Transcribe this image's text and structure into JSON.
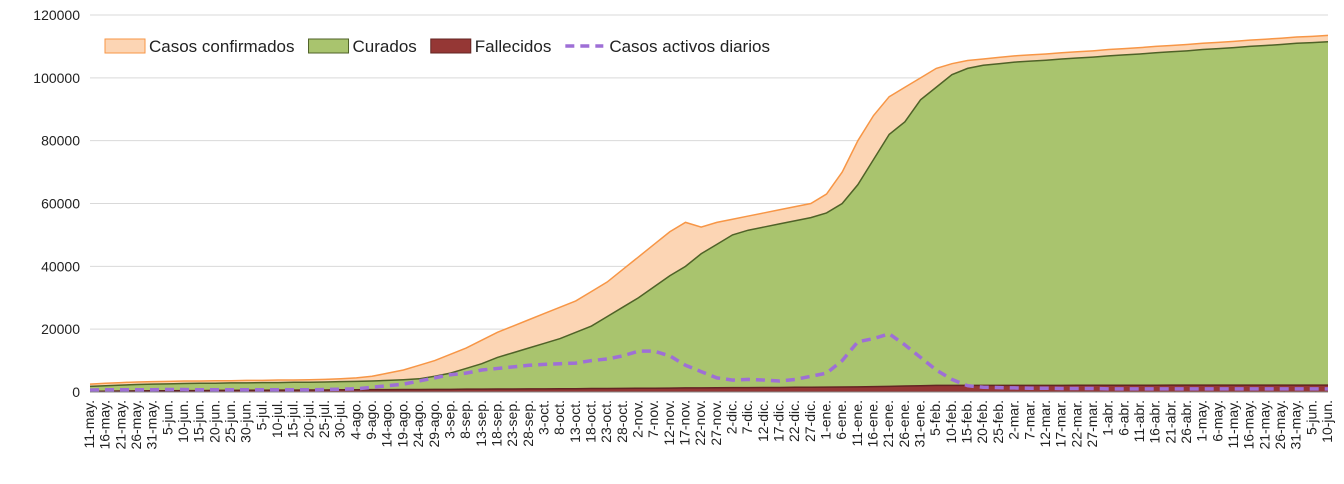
{
  "chart_data": {
    "type": "area",
    "categories": [
      "11-may.",
      "16-may.",
      "21-may.",
      "26-may.",
      "31-may.",
      "5-jun.",
      "10-jun.",
      "15-jun.",
      "20-jun.",
      "25-jun.",
      "30-jun.",
      "5-jul.",
      "10-jul.",
      "15-jul.",
      "20-jul.",
      "25-jul.",
      "30-jul.",
      "4-ago.",
      "9-ago.",
      "14-ago.",
      "19-ago.",
      "24-ago.",
      "29-ago.",
      "3-sep.",
      "8-sep.",
      "13-sep.",
      "18-sep.",
      "23-sep.",
      "28-sep.",
      "3-oct.",
      "8-oct.",
      "13-oct.",
      "18-oct.",
      "23-oct.",
      "28-oct.",
      "2-nov.",
      "7-nov.",
      "12-nov.",
      "17-nov.",
      "22-nov.",
      "27-nov.",
      "2-dic.",
      "7-dic.",
      "12-dic.",
      "17-dic.",
      "22-dic.",
      "27-dic.",
      "1-ene.",
      "6-ene.",
      "11-ene.",
      "16-ene.",
      "21-ene.",
      "26-ene.",
      "31-ene.",
      "5-feb.",
      "10-feb.",
      "15-feb.",
      "20-feb.",
      "25-feb.",
      "2-mar.",
      "7-mar.",
      "12-mar.",
      "17-mar.",
      "22-mar.",
      "27-mar.",
      "1-abr.",
      "6-abr.",
      "11-abr.",
      "16-abr.",
      "21-abr.",
      "26-abr.",
      "1-may.",
      "6-may.",
      "11-may.",
      "16-may.",
      "21-may.",
      "26-may.",
      "31-may.",
      "5-jun.",
      "10-jun."
    ],
    "series": [
      {
        "name": "Casos confirmados",
        "color": "#fcd5b4",
        "stroke": "#f79646",
        "kind": "area",
        "values": [
          2500,
          2800,
          3000,
          3200,
          3300,
          3400,
          3500,
          3500,
          3600,
          3600,
          3700,
          3700,
          3800,
          3800,
          3900,
          4000,
          4200,
          4500,
          5000,
          6000,
          7000,
          8500,
          10000,
          12000,
          14000,
          16500,
          19000,
          21000,
          23000,
          25000,
          27000,
          29000,
          32000,
          35000,
          39000,
          43000,
          47000,
          51000,
          54000,
          52500,
          54000,
          55000,
          56000,
          57000,
          58000,
          59000,
          60000,
          63000,
          70000,
          80000,
          88000,
          94000,
          97000,
          100000,
          103000,
          104500,
          105500,
          106000,
          106500,
          107000,
          107300,
          107600,
          108000,
          108300,
          108600,
          109000,
          109300,
          109600,
          110000,
          110300,
          110600,
          111000,
          111300,
          111600,
          112000,
          112300,
          112600,
          113000,
          113200,
          113500
        ]
      },
      {
        "name": "Curados",
        "color": "#a9c46e",
        "stroke": "#4f6228",
        "kind": "area",
        "values": [
          1800,
          2000,
          2200,
          2400,
          2500,
          2600,
          2700,
          2800,
          2800,
          2900,
          2900,
          3000,
          3000,
          3100,
          3100,
          3200,
          3300,
          3400,
          3500,
          3700,
          3900,
          4200,
          5000,
          6000,
          7500,
          9000,
          11000,
          12500,
          14000,
          15500,
          17000,
          19000,
          21000,
          24000,
          27000,
          30000,
          33500,
          37000,
          40000,
          44000,
          47000,
          50000,
          51500,
          52500,
          53500,
          54500,
          55500,
          57000,
          60000,
          66000,
          74000,
          82000,
          86000,
          93000,
          97000,
          101000,
          103000,
          104000,
          104500,
          105000,
          105300,
          105600,
          106000,
          106300,
          106600,
          107000,
          107300,
          107600,
          108000,
          108300,
          108600,
          109000,
          109300,
          109600,
          110000,
          110300,
          110600,
          111000,
          111200,
          111500
        ]
      },
      {
        "name": "Fallecidos",
        "color": "#953735",
        "stroke": "#632523",
        "kind": "area",
        "values": [
          200,
          250,
          300,
          350,
          400,
          400,
          450,
          450,
          500,
          500,
          550,
          550,
          600,
          600,
          650,
          650,
          700,
          700,
          750,
          750,
          800,
          800,
          850,
          850,
          900,
          900,
          950,
          950,
          1000,
          1000,
          1050,
          1050,
          1100,
          1100,
          1150,
          1200,
          1200,
          1250,
          1300,
          1300,
          1350,
          1400,
          1400,
          1450,
          1450,
          1500,
          1500,
          1550,
          1600,
          1650,
          1700,
          1800,
          1900,
          2000,
          2100,
          2100,
          2100,
          2100,
          2100,
          2100,
          2100,
          2100,
          2100,
          2150,
          2150,
          2150,
          2150,
          2150,
          2150,
          2200,
          2200,
          2200,
          2200,
          2200,
          2200,
          2200,
          2200,
          2200,
          2200,
          2200
        ]
      },
      {
        "name": "Casos activos diarios",
        "color": "#9e6fd6",
        "kind": "line",
        "values": [
          600,
          700,
          700,
          700,
          700,
          800,
          800,
          700,
          700,
          700,
          700,
          700,
          700,
          700,
          700,
          800,
          900,
          1000,
          1500,
          2000,
          2500,
          3500,
          4500,
          5500,
          6000,
          7000,
          7500,
          8000,
          8500,
          8800,
          9000,
          9200,
          10000,
          10500,
          11500,
          13000,
          13000,
          11500,
          8500,
          6500,
          4500,
          3800,
          4000,
          3800,
          3500,
          4000,
          5000,
          6000,
          10000,
          16000,
          17000,
          18500,
          15000,
          11000,
          7000,
          4000,
          2000,
          1500,
          1400,
          1300,
          1200,
          1200,
          1100,
          1100,
          1100,
          1000,
          1000,
          1000,
          1000,
          1000,
          1000,
          1000,
          1000,
          1000,
          1000,
          1000,
          1000,
          1000,
          1000,
          1000
        ]
      }
    ],
    "ylim": [
      0,
      120000
    ],
    "yticks": [
      0,
      20000,
      40000,
      60000,
      80000,
      100000,
      120000
    ],
    "grid": true,
    "legend": "top-left"
  }
}
